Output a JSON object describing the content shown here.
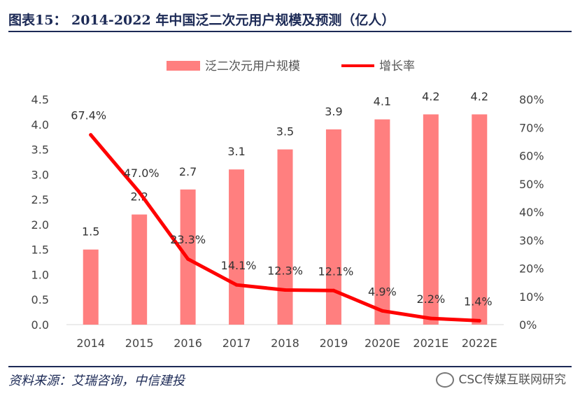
{
  "header": {
    "title": "图表15： 2014-2022 年中国泛二次元用户规模及预测（亿人）"
  },
  "footer": {
    "source": "资料来源：艾瑞咨询，中信建投",
    "watermark": "CSC传媒互联网研究"
  },
  "colors": {
    "bar": "#ff7f7f",
    "line": "#ff0000",
    "rule": "#1c2a56"
  },
  "chart_data": {
    "type": "bar",
    "title": "2014-2022 年中国泛二次元用户规模及预测（亿人）",
    "categories": [
      "2014",
      "2015",
      "2016",
      "2017",
      "2018",
      "2019",
      "2020E",
      "2021E",
      "2022E"
    ],
    "series": [
      {
        "name": "泛二次元用户规模",
        "type": "bar",
        "axis": "left",
        "values": [
          1.5,
          2.2,
          2.7,
          3.1,
          3.5,
          3.9,
          4.1,
          4.2,
          4.2
        ],
        "labels": [
          "1.5",
          "2.2",
          "2.7",
          "3.1",
          "3.5",
          "3.9",
          "4.1",
          "4.2",
          "4.2"
        ]
      },
      {
        "name": "增长率",
        "type": "line",
        "axis": "right",
        "values": [
          67.4,
          47.0,
          23.3,
          14.1,
          12.3,
          12.1,
          4.9,
          2.2,
          1.4
        ],
        "labels": [
          "67.4%",
          "47.0%",
          "23.3%",
          "14.1%",
          "12.3%",
          "12.1%",
          "4.9%",
          "2.2%",
          "1.4%"
        ]
      }
    ],
    "y_left": {
      "min": 0,
      "max": 4.5,
      "ticks": [
        "0.0",
        "0.5",
        "1.0",
        "1.5",
        "2.0",
        "2.5",
        "3.0",
        "3.5",
        "4.0",
        "4.5"
      ]
    },
    "y_right": {
      "min": 0,
      "max": 80,
      "ticks": [
        "0%",
        "10%",
        "20%",
        "30%",
        "40%",
        "50%",
        "60%",
        "70%",
        "80%"
      ]
    },
    "legend": {
      "position": "top-center",
      "bar_label": "泛二次元用户规模",
      "line_label": "增长率"
    },
    "grid": false
  }
}
